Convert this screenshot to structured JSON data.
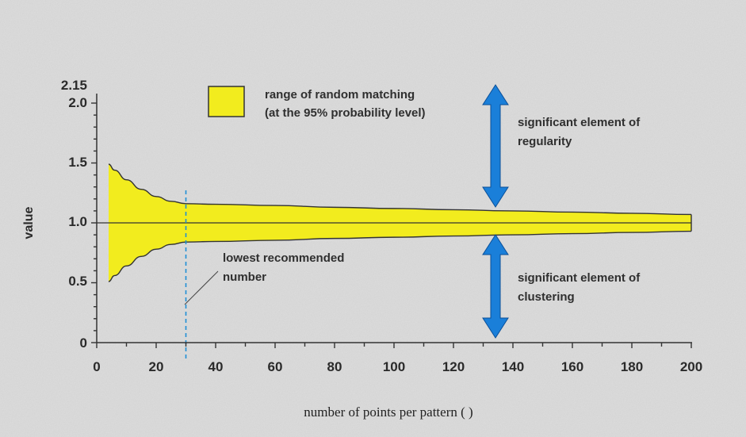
{
  "chart_data": {
    "type": "area",
    "ylabel": "value",
    "xlabel": "number of points per pattern (   )",
    "xlim": [
      0,
      200
    ],
    "ylim": [
      0,
      2.15
    ],
    "xticks": [
      "0",
      "20",
      "40",
      "60",
      "80",
      "100",
      "120",
      "140",
      "160",
      "180",
      "200"
    ],
    "yticks": [
      "0",
      "0.5",
      "1.0",
      "1.5",
      "2.0",
      "2.15"
    ],
    "grid": false,
    "reference_line": 1.0,
    "band": {
      "name": "range of random matching",
      "name_line2": "(at the 95% probability level)",
      "fill": "#f2ec1e",
      "x": [
        4,
        6,
        10,
        15,
        20,
        25,
        30,
        40,
        60,
        80,
        100,
        120,
        140,
        160,
        180,
        200
      ],
      "upper": [
        1.49,
        1.44,
        1.36,
        1.28,
        1.22,
        1.18,
        1.16,
        1.155,
        1.145,
        1.13,
        1.12,
        1.11,
        1.1,
        1.09,
        1.08,
        1.07
      ],
      "lower": [
        0.51,
        0.56,
        0.64,
        0.72,
        0.78,
        0.82,
        0.84,
        0.845,
        0.855,
        0.87,
        0.88,
        0.89,
        0.9,
        0.91,
        0.92,
        0.93
      ]
    },
    "vline": {
      "x": 30,
      "color": "#1f8fd6",
      "label_line1": "lowest recommended",
      "label_line2": "number"
    },
    "annotations": {
      "regularity_line1": "significant element of",
      "regularity_line2": "regularity",
      "clustering_line1": "significant element of",
      "clustering_line2": "clustering"
    },
    "arrow_color": "#1a7fd9"
  }
}
